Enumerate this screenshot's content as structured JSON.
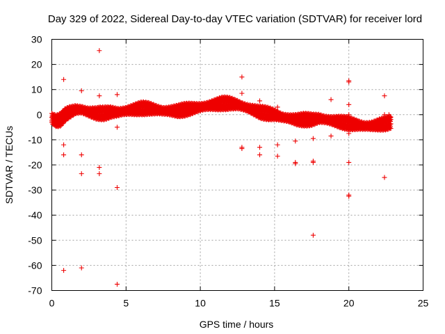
{
  "chart_data": {
    "type": "scatter",
    "title": "Day 329 of 2022, Sidereal Day-to-day VTEC variation (SDTVAR) for receiver lord",
    "xlabel": "GPS time / hours",
    "ylabel": "SDTVAR / TECUs",
    "xlim": [
      0,
      25
    ],
    "ylim": [
      -70,
      30
    ],
    "xticks": [
      "0",
      "5",
      "10",
      "15",
      "20",
      "25"
    ],
    "yticks": [
      "30",
      "20",
      "10",
      "0",
      "-10",
      "-20",
      "-30",
      "-40",
      "-50",
      "-60",
      "-70"
    ],
    "grid": true,
    "marker": "+",
    "color": "#ee0000",
    "trend": [
      [
        0.0,
        -1.5
      ],
      [
        0.3,
        -2.5
      ],
      [
        0.6,
        -2.0
      ],
      [
        0.9,
        0.0
      ],
      [
        1.2,
        1.0
      ],
      [
        1.6,
        2.0
      ],
      [
        2.0,
        2.0
      ],
      [
        2.5,
        1.0
      ],
      [
        3.0,
        0.5
      ],
      [
        3.5,
        0.5
      ],
      [
        4.0,
        1.0
      ],
      [
        4.5,
        1.0
      ],
      [
        5.0,
        1.5
      ],
      [
        5.5,
        2.0
      ],
      [
        6.0,
        2.5
      ],
      [
        6.5,
        2.5
      ],
      [
        7.0,
        2.0
      ],
      [
        7.5,
        1.5
      ],
      [
        8.0,
        1.5
      ],
      [
        8.5,
        1.5
      ],
      [
        9.0,
        2.0
      ],
      [
        9.5,
        2.5
      ],
      [
        10.0,
        3.0
      ],
      [
        10.5,
        3.5
      ],
      [
        11.0,
        4.0
      ],
      [
        11.5,
        4.5
      ],
      [
        12.0,
        4.5
      ],
      [
        12.5,
        4.0
      ],
      [
        13.0,
        3.0
      ],
      [
        13.5,
        2.0
      ],
      [
        14.0,
        1.0
      ],
      [
        14.5,
        0.5
      ],
      [
        15.0,
        0.0
      ],
      [
        15.5,
        -1.0
      ],
      [
        16.0,
        -1.5
      ],
      [
        16.5,
        -2.0
      ],
      [
        17.0,
        -2.0
      ],
      [
        17.5,
        -2.0
      ],
      [
        18.0,
        -1.5
      ],
      [
        18.5,
        -2.0
      ],
      [
        19.0,
        -2.5
      ],
      [
        19.5,
        -3.0
      ],
      [
        20.0,
        -3.5
      ],
      [
        20.5,
        -4.0
      ],
      [
        21.0,
        -4.5
      ],
      [
        21.5,
        -4.5
      ],
      [
        22.0,
        -4.0
      ],
      [
        22.5,
        -3.5
      ],
      [
        22.85,
        -3.0
      ]
    ],
    "outliers": [
      [
        0.8,
        14.0
      ],
      [
        0.8,
        -12.0
      ],
      [
        0.8,
        -16.0
      ],
      [
        0.8,
        -62.0
      ],
      [
        2.0,
        9.5
      ],
      [
        2.0,
        -16.0
      ],
      [
        2.0,
        -23.5
      ],
      [
        2.0,
        -61.0
      ],
      [
        3.2,
        25.5
      ],
      [
        3.2,
        7.5
      ],
      [
        3.2,
        3.0
      ],
      [
        3.2,
        -21.0
      ],
      [
        3.2,
        -23.5
      ],
      [
        4.4,
        8.0
      ],
      [
        4.4,
        -5.0
      ],
      [
        4.4,
        -29.0
      ],
      [
        4.4,
        -67.5
      ],
      [
        12.8,
        15.0
      ],
      [
        12.8,
        8.5
      ],
      [
        12.8,
        -13.0
      ],
      [
        12.8,
        -13.5
      ],
      [
        14.0,
        5.5
      ],
      [
        14.0,
        -13.0
      ],
      [
        14.0,
        -16.0
      ],
      [
        15.2,
        3.0
      ],
      [
        15.2,
        -12.0
      ],
      [
        15.2,
        -16.5
      ],
      [
        16.4,
        -10.5
      ],
      [
        16.4,
        -19.0
      ],
      [
        16.4,
        -19.5
      ],
      [
        17.6,
        -9.5
      ],
      [
        17.6,
        -18.5
      ],
      [
        17.6,
        -19.0
      ],
      [
        17.6,
        -48.0
      ],
      [
        18.8,
        6.0
      ],
      [
        18.8,
        -8.5
      ],
      [
        20.0,
        13.5
      ],
      [
        20.0,
        13.0
      ],
      [
        20.0,
        4.0
      ],
      [
        20.0,
        0.0
      ],
      [
        20.0,
        -7.5
      ],
      [
        20.0,
        -19.0
      ],
      [
        20.0,
        -32.0
      ],
      [
        20.0,
        -32.5
      ],
      [
        22.4,
        7.5
      ],
      [
        22.4,
        -25.0
      ],
      [
        22.4,
        0.0
      ],
      [
        22.7,
        0.0
      ],
      [
        22.7,
        -1.0
      ],
      [
        22.7,
        -2.0
      ]
    ]
  }
}
